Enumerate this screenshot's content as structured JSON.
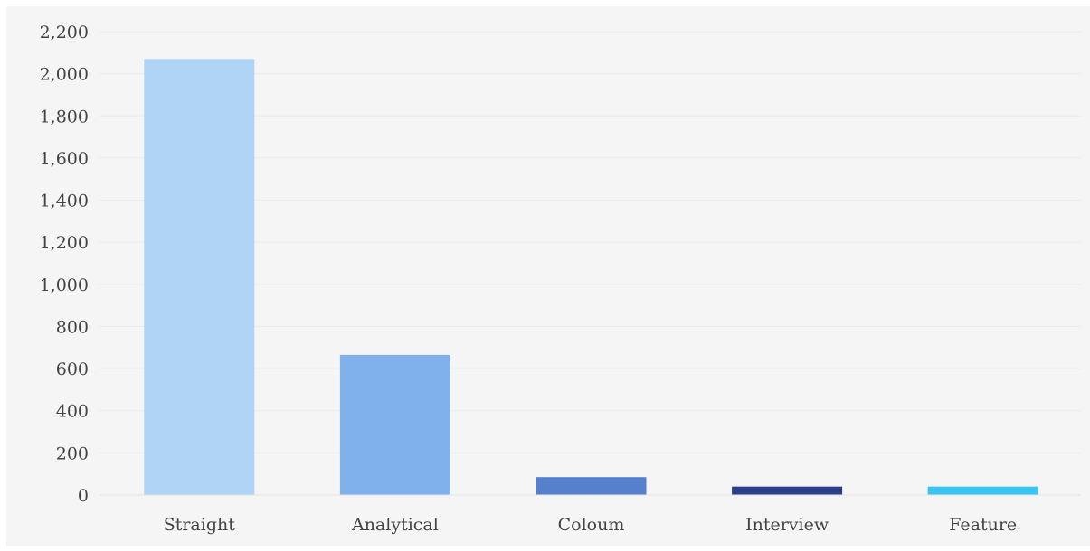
{
  "chart_data": {
    "type": "bar",
    "title": "",
    "xlabel": "",
    "ylabel": "",
    "categories": [
      "Straight",
      "Analytical",
      "Coloum",
      "Interview",
      "Feature"
    ],
    "values": [
      2070,
      665,
      85,
      40,
      40
    ],
    "colors": [
      "#b0d4f5",
      "#80b1ed",
      "#5580cc",
      "#2d3f8a",
      "#39c6f4"
    ],
    "ylim": [
      0,
      2200
    ],
    "yticks": [
      0,
      200,
      400,
      600,
      800,
      1000,
      1200,
      1400,
      1600,
      1800,
      2000,
      2200
    ],
    "ytick_labels": [
      "0",
      "200",
      "400",
      "600",
      "800",
      "1,000",
      "1,200",
      "1,400",
      "1,600",
      "1,800",
      "2,000",
      "2,200"
    ],
    "grid": true,
    "legend": "none"
  }
}
